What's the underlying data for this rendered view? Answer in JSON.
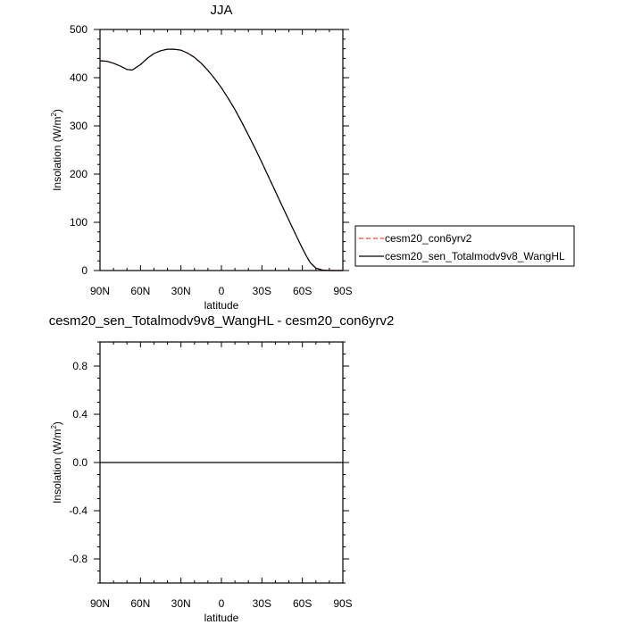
{
  "colors": {
    "control": "#e8493c",
    "sensitivity": "#000000",
    "difference": "#000000",
    "background": "#ffffff"
  },
  "chart_data": [
    {
      "type": "line",
      "title": "JJA",
      "xlabel": "latitude",
      "ylabel_main": "Insolation (W/m",
      "ylabel_sup": "2",
      "ylabel_tail": ")",
      "xlim": [
        90,
        -90
      ],
      "ylim": [
        0,
        500
      ],
      "x_ticks": [
        90,
        60,
        30,
        0,
        -30,
        -60,
        -90
      ],
      "x_tick_labels": [
        "90N",
        "60N",
        "30N",
        "0",
        "30S",
        "60S",
        "90S"
      ],
      "y_ticks": [
        0,
        100,
        200,
        300,
        400,
        500
      ],
      "y_tick_labels": [
        "0",
        "100",
        "200",
        "300",
        "400",
        "500"
      ],
      "grid": false,
      "legend_placement": "right",
      "x": [
        90,
        85,
        80,
        75,
        70,
        66,
        60,
        55,
        50,
        45,
        40,
        35,
        30,
        25,
        20,
        15,
        10,
        5,
        0,
        -5,
        -10,
        -15,
        -20,
        -25,
        -30,
        -35,
        -40,
        -45,
        -50,
        -55,
        -60,
        -63,
        -66,
        -70,
        -75,
        -80,
        -85,
        -90
      ],
      "series": [
        {
          "name": "cesm20_con6yrv2",
          "style": "dashed",
          "color": "#e8493c",
          "values": [
            435,
            434,
            430,
            424,
            417,
            416,
            427,
            440,
            450,
            456,
            459,
            459,
            457,
            451,
            442,
            430,
            415,
            398,
            379,
            357,
            334,
            308,
            281,
            253,
            224,
            194,
            164,
            134,
            104,
            75,
            46,
            30,
            16,
            5,
            1,
            0,
            0,
            0
          ]
        },
        {
          "name": "cesm20_sen_Totalmodv9v8_WangHL",
          "style": "solid",
          "color": "#000000",
          "values": [
            435,
            434,
            430,
            424,
            417,
            416,
            427,
            440,
            450,
            456,
            459,
            459,
            457,
            451,
            442,
            430,
            415,
            398,
            379,
            357,
            334,
            308,
            281,
            253,
            224,
            194,
            164,
            134,
            104,
            75,
            46,
            30,
            16,
            5,
            1,
            0,
            0,
            0
          ]
        }
      ]
    },
    {
      "type": "line",
      "title": "cesm20_sen_Totalmodv9v8_WangHL - cesm20_con6yrv2",
      "xlabel": "latitude",
      "ylabel_main": "Insolation (W/m",
      "ylabel_sup": "2",
      "ylabel_tail": ")",
      "xlim": [
        90,
        -90
      ],
      "ylim": [
        -1,
        1
      ],
      "x_ticks": [
        90,
        60,
        30,
        0,
        -30,
        -60,
        -90
      ],
      "x_tick_labels": [
        "90N",
        "60N",
        "30N",
        "0",
        "30S",
        "60S",
        "90S"
      ],
      "y_ticks": [
        -0.8,
        -0.4,
        0.0,
        0.4,
        0.8
      ],
      "y_tick_labels": [
        "-0.8",
        "-0.4",
        "0.0",
        "0.4",
        "0.8"
      ],
      "grid": false,
      "x": [
        90,
        -90
      ],
      "series": [
        {
          "style": "solid",
          "color": "#000000",
          "values": [
            0,
            0
          ]
        }
      ]
    }
  ]
}
